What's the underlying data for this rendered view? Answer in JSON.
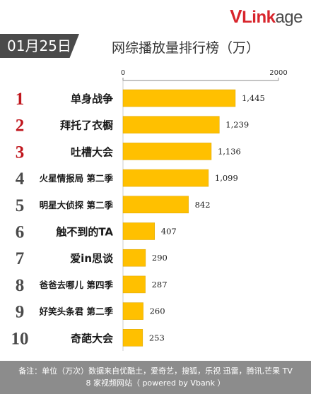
{
  "brand": {
    "v": "V",
    "link": "Link",
    "age": "age"
  },
  "date_label": "01月25日",
  "title": "网综播放量排行榜（万）",
  "colors": {
    "bar": "#ffc000",
    "rank": "#c0161d",
    "tag": "#4a4a4a",
    "footer": "#8c8c8c"
  },
  "chart_data": {
    "type": "bar",
    "orientation": "horizontal",
    "title": "网综播放量排行榜（万）",
    "xlim": [
      0,
      2000
    ],
    "x_ticks": [
      "0",
      "2000"
    ],
    "grid": false,
    "ranks": [
      "1",
      "2",
      "3",
      "4",
      "5",
      "6",
      "7",
      "8",
      "9",
      "10"
    ],
    "categories": [
      "单身战争",
      "拜托了衣橱",
      "吐槽大会",
      "火星情报局 第二季",
      "明星大侦探 第二季",
      "触不到的TA",
      "爱in思谈",
      "爸爸去哪儿 第四季",
      "好笑头条君 第二季",
      "奇葩大会"
    ],
    "values": [
      1445,
      1239,
      1136,
      1099,
      842,
      407,
      290,
      287,
      260,
      253
    ],
    "value_labels": [
      "1,445",
      "1,239",
      "1,136",
      "1,099",
      "842",
      "407",
      "290",
      "287",
      "260",
      "253"
    ]
  },
  "footer": {
    "line1": "备注：单位（万次）数据来自优酷土，爱奇艺，搜狐，乐视  迅雷，腾讯,芒果 TV",
    "line2": "8 家视频网站（ powered by Vbank ）"
  }
}
